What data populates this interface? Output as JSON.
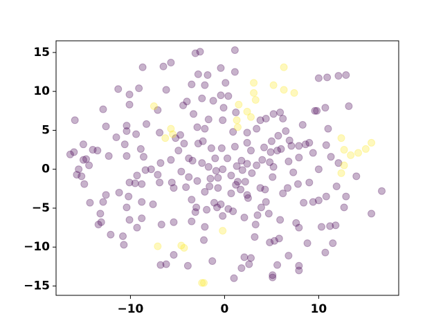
{
  "chart_data": {
    "type": "scatter",
    "xlim": [
      -17.9,
      18.5
    ],
    "ylim": [
      -16.2,
      16.5
    ],
    "xticks": [
      {
        "value": -10,
        "label": "−10"
      },
      0,
      10
    ],
    "yticks": [
      {
        "value": -15,
        "label": "−15"
      },
      {
        "value": -10,
        "label": "−10"
      },
      {
        "value": -5,
        "label": "−5"
      },
      0,
      5,
      10,
      15
    ],
    "series": [
      {
        "color": "#440154",
        "x": [
          -2.6,
          -3.1,
          1.1,
          -0.4,
          -6.5,
          -5.7,
          -8.7,
          -2.8,
          -1.8,
          -3.5,
          -2.1,
          -0.4,
          0.1,
          1.1,
          -6.2,
          -9.1,
          -10.1,
          -11.3,
          -10.1,
          -7.1,
          -12.9,
          -12.6,
          -10.4,
          -10.4,
          -8.3,
          -9.4,
          -11.5,
          -6.9,
          -4.7,
          -4.4,
          -4.0,
          -2.4,
          -1.2,
          0.4,
          -0.1,
          -0.2,
          -1.7,
          -2.9,
          -3.3,
          -2.1,
          3.8,
          4.4,
          5.2,
          5.9,
          6.2,
          5.0,
          5.7,
          6.5,
          6.9,
          6.0,
          5.6,
          4.9,
          4.2,
          2.8,
          2.4,
          2.4,
          3.4,
          0.9,
          1.1,
          -0.3,
          -1.4,
          -2.3,
          -2.8,
          -4.3,
          -5.2,
          -4.9,
          -5.7,
          -3.8,
          -3.4,
          -2.4,
          -1.7,
          -1.0,
          -0.2,
          0.3,
          1.3,
          1.8,
          2.4,
          3.4,
          4.0,
          4.8,
          5.2,
          6.8,
          7.1,
          7.9,
          8.6,
          9.0,
          8.3,
          9.8,
          10.7,
          11.0,
          10.8,
          11.3,
          12.1,
          9.4,
          10.0,
          9.0,
          7.3,
          7.8,
          8.4,
          9.4,
          10.0,
          10.8,
          11.9,
          12.9,
          12.7,
          14.0,
          13.2,
          12.1,
          12.9,
          10.0,
          10.9,
          9.6,
          16.7,
          15.6,
          11.2,
          10.3,
          11.8,
          11.5,
          10.7,
          8.8,
          7.9,
          7.9,
          7.6,
          7.9,
          5.8,
          5.3,
          4.8,
          5.1,
          5.1,
          5.6,
          6.8,
          5.9,
          4.7,
          4.4,
          3.9,
          3.5,
          4.3,
          3.8,
          2.5,
          1.7,
          2.2,
          1.2,
          0.7,
          0.4,
          -0.2,
          -0.8,
          -1.1,
          -1.9,
          -3.1,
          -3.0,
          -2.1,
          -1.6,
          -0.7,
          -0.7,
          -1.5,
          -2.9,
          -3.8,
          -4.6,
          -5.6,
          -6.9,
          -7.1,
          -7.8,
          -8.4,
          -9.3,
          -8.8,
          -10.1,
          -10.2,
          -10.4,
          -11.2,
          -12.6,
          -12.9,
          -13.2,
          -13.1,
          -13.4,
          -14.3,
          -14.9,
          -15.2,
          -14.4,
          -15.5,
          -15.7,
          -14.7,
          -15.9,
          -15.0,
          -14.0,
          -13.5,
          -10.4,
          -10.6,
          -8.9,
          -8.6,
          -7.6,
          -8.8,
          -9.5,
          -8.8,
          -10.1,
          -9.3,
          -6.7,
          -5.4,
          -3.5,
          -2.1,
          -2.2,
          -1.3,
          -3.9,
          -6.2,
          -6.8,
          -5.4,
          -10.8,
          -10.7,
          -12.1,
          2.1,
          3.3,
          3.2,
          2.1,
          1.0,
          1.8,
          2.6,
          2.8,
          6.2,
          6.7,
          5.1,
          2.9,
          1.9,
          1.4,
          2.4,
          0.7,
          -0.9,
          1.2,
          -16.0,
          -15.0,
          -12.3,
          -6.8,
          -4.1,
          0.9,
          -0.4,
          -3.5,
          -5.4,
          -16.4,
          7.9
        ],
        "values": [
          15.1,
          14.9,
          15.3,
          13.0,
          13.2,
          13.7,
          13.1,
          12.2,
          12.1,
          10.9,
          10.8,
          9.5,
          11.1,
          12.5,
          10.2,
          10.4,
          9.6,
          10.3,
          8.3,
          7.6,
          7.7,
          5.5,
          5.6,
          4.9,
          5.8,
          4.5,
          4.1,
          4.7,
          4.4,
          8.2,
          8.7,
          9.1,
          8.8,
          9.4,
          7.9,
          6.3,
          6.4,
          5.4,
          7.1,
          5.2,
          6.3,
          6.5,
          7.1,
          7.3,
          6.5,
          3.6,
          4.3,
          4.9,
          3.7,
          2.6,
          2.4,
          2.2,
          2.8,
          2.4,
          3.4,
          4.7,
          5.2,
          4.8,
          2.9,
          2.7,
          2.7,
          3.6,
          3.3,
          3.3,
          4.0,
          2.4,
          1.2,
          1.4,
          1.1,
          0.8,
          0.3,
          1.4,
          0.0,
          1.4,
          0.4,
          1.1,
          0.7,
          0.5,
          1.2,
          0.9,
          0.3,
          1.0,
          3.0,
          3.0,
          3.2,
          3.4,
          5.7,
          7.5,
          7.9,
          5.2,
          3.1,
          1.6,
          0.8,
          2.1,
          0.0,
          -1.7,
          -0.4,
          -1.9,
          -4.3,
          -4.2,
          -4.0,
          -3.5,
          -2.2,
          -3.5,
          -4.9,
          -0.9,
          8.1,
          12.0,
          12.1,
          11.7,
          11.8,
          7.5,
          -2.8,
          -5.7,
          -7.3,
          -7.4,
          -7.2,
          -9.5,
          -10.7,
          -9.5,
          -12.4,
          -13.0,
          -6.9,
          -7.5,
          -8.9,
          -9.2,
          -9.4,
          -13.6,
          -13.9,
          -12.3,
          -11.1,
          -6.5,
          -5.7,
          -4.2,
          -4.9,
          -5.9,
          -2.6,
          -2.4,
          -3.7,
          -2.6,
          -1.6,
          -2.0,
          -3.1,
          -5.1,
          -6.0,
          -4.9,
          -4.3,
          -5.2,
          -5.5,
          -4.9,
          -2.9,
          -2.2,
          -2.4,
          -1.1,
          -1.2,
          -1.5,
          -1.0,
          -0.3,
          -1.7,
          -1.7,
          -0.7,
          0.0,
          -0.1,
          -0.8,
          -1.9,
          -1.7,
          -3.5,
          -4.9,
          -3.0,
          -3.3,
          -4.2,
          -5.7,
          -6.8,
          -7.1,
          -4.3,
          -1.9,
          -0.9,
          0.5,
          0.0,
          -0.7,
          1.3,
          6.3,
          3.2,
          2.5,
          2.4,
          1.7,
          3.2,
          2.6,
          1.6,
          -4.5,
          -4.2,
          -1.8,
          -6.3,
          -6.5,
          -7.5,
          -7.1,
          -6.8,
          -6.7,
          -7.4,
          -9.1,
          -11.8,
          -12.4,
          -12.2,
          -12.3,
          -11.0,
          -8.6,
          -9.7,
          -8.4,
          -6.2,
          -7.1,
          -8.7,
          -11.3,
          -14.0,
          -12.7,
          -12.2,
          -11.4,
          -3.1,
          -2.4,
          -1.0,
          -0.5,
          -0.1,
          -1.6,
          -3.3,
          -0.8,
          -0.2,
          7.3,
          2.2,
          1.2,
          1.7,
          0.8,
          -2.3,
          -5.4,
          -4.5,
          -3.9,
          -2.4,
          1.9,
          1.5
        ]
      },
      {
        "color": "#fde725",
        "x": [
          -7.5,
          -5.7,
          -5.5,
          -6.3,
          -7.1,
          -4.6,
          -4.3,
          -0.2,
          -2.4,
          -2.2,
          3.1,
          3.1,
          3.3,
          1.5,
          1.3,
          1.4,
          2.4,
          2.8,
          5.2,
          6.3,
          6.3,
          7.4,
          12.4,
          12.7,
          12.7,
          12.4,
          13.4,
          14.2,
          15.0,
          15.6
        ],
        "values": [
          8.1,
          5.2,
          4.5,
          4.0,
          -9.9,
          -9.8,
          -10.1,
          -7.9,
          -14.6,
          -14.6,
          11.1,
          9.8,
          8.9,
          8.3,
          6.3,
          5.4,
          7.4,
          6.7,
          10.8,
          13.1,
          10.2,
          9.8,
          4.0,
          2.5,
          0.5,
          -0.5,
          1.8,
          2.1,
          2.6,
          3.4
        ]
      }
    ]
  }
}
